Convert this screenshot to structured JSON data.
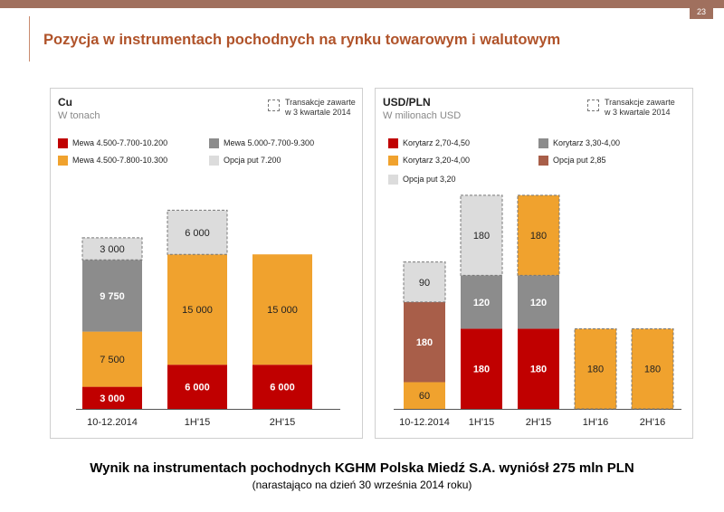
{
  "page_number": "23",
  "title": "Pozycja w instrumentach pochodnych na rynku towarowym i walutowym",
  "footer": {
    "main": "Wynik na instrumentach pochodnych KGHM Polska Miedź S.A. wyniósł 275 mln PLN",
    "sub": "(narastająco na dzień 30 września 2014 roku)"
  },
  "chart_data": [
    {
      "type": "bar",
      "stacked": true,
      "title": "Cu",
      "subtitle": "W tonach",
      "dashed_legend": "Transakcje zawarte\nw 3 kwartale 2014",
      "categories": [
        "10-12.2014",
        "1H'15",
        "2H'15"
      ],
      "series": [
        {
          "name": "Mewa 4.500-7.700-10.200",
          "color": "#c00000",
          "values": [
            3000,
            6000,
            6000
          ],
          "labels": [
            "3 000",
            "6 000",
            "6 000"
          ],
          "dashed": [
            false,
            false,
            false
          ],
          "text_color": "#ffffff"
        },
        {
          "name": "Mewa 4.500-7.800-10.300",
          "color": "#f0a22e",
          "values": [
            7500,
            15000,
            15000
          ],
          "labels": [
            "7 500",
            "15 000",
            "15 000"
          ],
          "dashed": [
            false,
            false,
            false
          ],
          "text_color": "#222222"
        },
        {
          "name": "Mewa 5.000-7.700-9.300",
          "color": "#8c8c8c",
          "values": [
            9750,
            0,
            0
          ],
          "labels": [
            "9 750",
            "",
            ""
          ],
          "dashed": [
            false,
            false,
            false
          ],
          "text_color": "#ffffff"
        },
        {
          "name": "Opcja put 7.200",
          "color": "#dcdcdc",
          "values": [
            3000,
            6000,
            0
          ],
          "labels": [
            "3 000",
            "6 000",
            ""
          ],
          "dashed": [
            true,
            true,
            false
          ],
          "text_color": "#222222"
        }
      ],
      "legend": [
        {
          "name": "Mewa 4.500-7.700-10.200",
          "color": "#c00000"
        },
        {
          "name": "Mewa 5.000-7.700-9.300",
          "color": "#8c8c8c"
        },
        {
          "name": "Mewa 4.500-7.800-10.300",
          "color": "#f0a22e"
        },
        {
          "name": "Opcja put 7.200",
          "color": "#dcdcdc"
        }
      ],
      "ylim": [
        0,
        30000
      ],
      "grid": false
    },
    {
      "type": "bar",
      "stacked": true,
      "title": "USD/PLN",
      "subtitle": "W milionach USD",
      "dashed_legend": "Transakcje zawarte\nw 3 kwartale 2014",
      "categories": [
        "10-12.2014",
        "1H'15",
        "2H'15",
        "1H'16",
        "2H'16"
      ],
      "series": [
        {
          "name": "Korytarz 3,20-4,00",
          "color": "#f0a22e",
          "values": [
            60,
            0,
            0,
            0,
            0
          ],
          "labels": [
            "60",
            "",
            "",
            "",
            ""
          ],
          "dashed": [
            false,
            false,
            false,
            false,
            false
          ],
          "text_color": "#222222"
        },
        {
          "name": "Opcja put 2,85",
          "color": "#a85e49",
          "values": [
            180,
            0,
            0,
            0,
            0
          ],
          "labels": [
            "180",
            "",
            "",
            "",
            ""
          ],
          "dashed": [
            false,
            false,
            false,
            false,
            false
          ],
          "text_color": "#ffffff"
        },
        {
          "name": "Korytarz 2,70-4,50",
          "color": "#c00000",
          "values": [
            0,
            180,
            180,
            0,
            0
          ],
          "labels": [
            "",
            "180",
            "180",
            "",
            ""
          ],
          "dashed": [
            false,
            false,
            false,
            false,
            false
          ],
          "text_color": "#ffffff"
        },
        {
          "name": "Korytarz 3,30-4,00",
          "color": "#8c8c8c",
          "values": [
            0,
            120,
            120,
            0,
            0
          ],
          "labels": [
            "",
            "120",
            "120",
            "",
            ""
          ],
          "dashed": [
            false,
            false,
            false,
            false,
            false
          ],
          "text_color": "#ffffff"
        },
        {
          "name": "Opcja put 3,20",
          "color": "#dcdcdc",
          "values": [
            90,
            180,
            0,
            0,
            0
          ],
          "labels": [
            "90",
            "180",
            "",
            "",
            ""
          ],
          "dashed": [
            true,
            true,
            false,
            false,
            false
          ],
          "text_color": "#222222"
        },
        {
          "name": "Korytarz 3,20-4,00 (3Q 2014)",
          "color": "#f0a22e",
          "values": [
            0,
            0,
            180,
            180,
            180
          ],
          "labels": [
            "",
            "",
            "180",
            "180",
            "180"
          ],
          "dashed": [
            false,
            false,
            true,
            true,
            true
          ],
          "text_color": "#222222"
        }
      ],
      "legend": [
        {
          "name": "Korytarz 2,70-4,50",
          "color": "#c00000"
        },
        {
          "name": "Korytarz 3,30-4,00",
          "color": "#8c8c8c"
        },
        {
          "name": "Korytarz 3,20-4,00",
          "color": "#f0a22e"
        },
        {
          "name": "Opcja put 2,85",
          "color": "#a85e49"
        },
        {
          "name": "Opcja put 3,20",
          "color": "#dcdcdc"
        }
      ],
      "ylim": [
        0,
        500
      ],
      "grid": false
    }
  ]
}
